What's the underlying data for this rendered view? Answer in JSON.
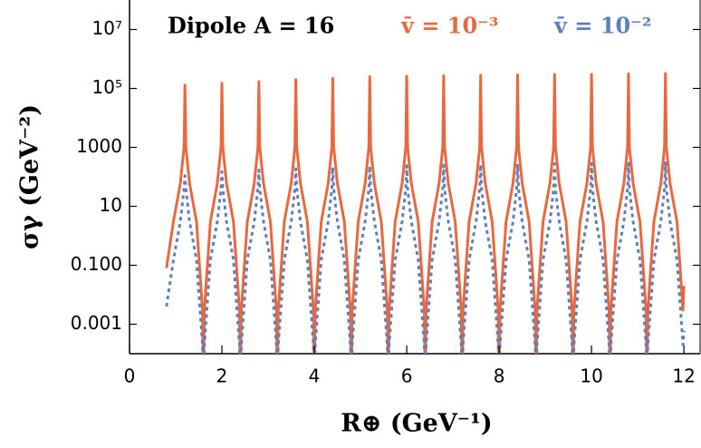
{
  "chart_data": {
    "type": "line",
    "annotation": "Dipole  A = 16",
    "x_label": "R⊕  (GeV⁻¹)",
    "y_label": "σγ  (GeV⁻²)",
    "log_y": true,
    "xlim": [
      0,
      12.35
    ],
    "ylim": [
      0.0001,
      100000000
    ],
    "xticks": [
      0,
      2,
      4,
      6,
      8,
      10,
      12
    ],
    "yticks": [
      {
        "value": 10000000,
        "label": "10⁷"
      },
      {
        "value": 100000,
        "label": "10⁵"
      },
      1000,
      10,
      {
        "value": 0.1,
        "label": "0.100"
      },
      0.001
    ],
    "x": [
      0.8,
      0.95,
      1.1,
      1.18,
      1.2,
      1.22,
      1.3,
      1.45,
      1.58,
      1.6,
      1.62,
      1.75,
      1.9,
      1.98,
      2.0,
      2.02,
      2.1,
      2.25,
      2.38,
      2.4,
      2.42,
      2.55,
      2.7,
      2.78,
      2.8,
      2.82,
      2.9,
      3.05,
      3.18,
      3.2,
      3.22,
      3.35,
      3.5,
      3.58,
      3.6,
      3.62,
      3.7,
      3.85,
      3.98,
      4.0,
      4.02,
      4.15,
      4.3,
      4.38,
      4.4,
      4.42,
      4.5,
      4.65,
      4.78,
      4.8,
      4.82,
      4.95,
      5.1,
      5.18,
      5.2,
      5.22,
      5.3,
      5.45,
      5.58,
      5.6,
      5.62,
      5.75,
      5.9,
      5.98,
      6.0,
      6.02,
      6.1,
      6.25,
      6.38,
      6.4,
      6.42,
      6.55,
      6.7,
      6.78,
      6.8,
      6.82,
      6.9,
      7.05,
      7.18,
      7.2,
      7.22,
      7.35,
      7.5,
      7.58,
      7.6,
      7.62,
      7.7,
      7.85,
      7.98,
      8.0,
      8.02,
      8.15,
      8.3,
      8.38,
      8.4,
      8.42,
      8.5,
      8.65,
      8.78,
      8.8,
      8.82,
      8.95,
      9.1,
      9.18,
      9.2,
      9.22,
      9.3,
      9.45,
      9.58,
      9.6,
      9.62,
      9.75,
      9.9,
      9.98,
      10.0,
      10.02,
      10.1,
      10.25,
      10.38,
      10.4,
      10.42,
      10.55,
      10.7,
      10.78,
      10.8,
      10.82,
      10.9,
      11.05,
      11.18,
      11.2,
      11.22,
      11.35,
      11.5,
      11.58,
      11.6,
      11.62,
      11.7,
      11.85,
      11.98,
      12.0
    ],
    "series": [
      {
        "name": "v̄ = 10⁻³",
        "color": "#e8683f",
        "style": "solid",
        "values": [
          0.08,
          3,
          60,
          1000,
          130000,
          1000,
          60,
          3,
          0.003,
          1e-05,
          0.003,
          3,
          60,
          1000,
          150000,
          1000,
          60,
          3,
          0.003,
          1e-05,
          0.003,
          3,
          60,
          1000,
          170000,
          1000,
          60,
          3,
          0.003,
          1e-05,
          0.003,
          3,
          60,
          1000,
          200000,
          1000,
          60,
          3,
          0.003,
          1e-05,
          0.003,
          3,
          60,
          1000,
          220000,
          1000,
          60,
          3,
          0.003,
          1e-05,
          0.003,
          3,
          60,
          1000,
          250000,
          1000,
          60,
          3,
          0.003,
          1e-05,
          0.003,
          3,
          60,
          1000,
          260000,
          1000,
          60,
          3,
          0.003,
          1e-05,
          0.003,
          3,
          60,
          1000,
          270000,
          1000,
          60,
          3,
          0.003,
          1e-05,
          0.003,
          3,
          60,
          1000,
          280000,
          1000,
          60,
          3,
          0.003,
          1e-05,
          0.003,
          3,
          60,
          1000,
          290000,
          1000,
          60,
          3,
          0.003,
          1e-05,
          0.003,
          3,
          60,
          1000,
          300000,
          1000,
          60,
          3,
          0.003,
          1e-05,
          0.003,
          3,
          60,
          1000,
          300000,
          1000,
          60,
          3,
          0.003,
          1e-05,
          0.003,
          3,
          60,
          1000,
          310000,
          1000,
          60,
          3,
          0.003,
          1e-05,
          0.003,
          3,
          60,
          1000,
          320000,
          1000,
          60,
          3,
          0.003,
          0.02
        ]
      },
      {
        "name": "v̄ = 10⁻²",
        "color": "#5b80bd",
        "style": "dotted",
        "values": [
          0.004,
          0.15,
          3,
          40,
          110,
          40,
          3,
          0.15,
          0.0002,
          1e-05,
          0.0002,
          0.15,
          3,
          40,
          150,
          40,
          3,
          0.15,
          0.0002,
          1e-05,
          0.0002,
          0.15,
          3,
          40,
          170,
          40,
          3,
          0.15,
          0.0002,
          1e-05,
          0.0002,
          0.15,
          3,
          40,
          190,
          40,
          3,
          0.15,
          0.0002,
          1e-05,
          0.0002,
          0.15,
          3,
          40,
          210,
          40,
          3,
          0.15,
          0.0002,
          1e-05,
          0.0002,
          0.15,
          3,
          40,
          230,
          40,
          3,
          0.15,
          0.0002,
          1e-05,
          0.0002,
          0.15,
          3,
          40,
          240,
          40,
          3,
          0.15,
          0.0002,
          1e-05,
          0.0002,
          0.15,
          3,
          40,
          250,
          40,
          3,
          0.15,
          0.0002,
          1e-05,
          0.0002,
          0.15,
          3,
          40,
          260,
          40,
          3,
          0.15,
          0.0002,
          1e-05,
          0.0002,
          0.15,
          3,
          40,
          270,
          40,
          3,
          0.15,
          0.0002,
          1e-05,
          0.0002,
          0.15,
          3,
          40,
          280,
          40,
          3,
          0.15,
          0.0002,
          1e-05,
          0.0002,
          0.15,
          3,
          40,
          290,
          40,
          3,
          0.15,
          0.0002,
          1e-05,
          0.0002,
          0.15,
          3,
          40,
          290,
          40,
          3,
          0.15,
          0.0002,
          1e-05,
          0.0002,
          0.15,
          3,
          40,
          300,
          40,
          3,
          0.15,
          0.0002,
          0.0006
        ]
      }
    ]
  }
}
